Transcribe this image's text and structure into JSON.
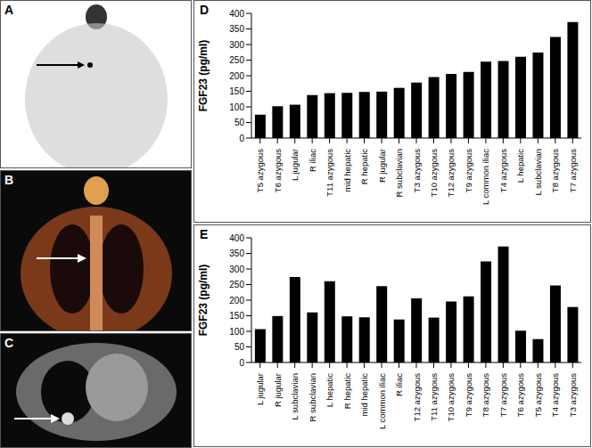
{
  "images": [
    {
      "label": "A"
    },
    {
      "label": "B"
    },
    {
      "label": "C"
    }
  ],
  "chart_data": [
    {
      "type": "bar",
      "title": "D",
      "y_label": "FGF23 (pg/ml)",
      "categories": [
        "T5 azygous",
        "T6 azygous",
        "L jugular",
        "R iliac",
        "T11 azygous",
        "mid hepatic",
        "R hepatic",
        "R jugular",
        "R subclavian",
        "T3 azygous",
        "T10 azygous",
        "T12 azygous",
        "T9 azygous",
        "L common iliac",
        "T4 azygous",
        "L hepatic",
        "L subclavian",
        "T8 azygous",
        "T7 azygous"
      ],
      "values": [
        75,
        102,
        107,
        138,
        144,
        145,
        148,
        149,
        161,
        178,
        196,
        206,
        212,
        245,
        247,
        261,
        274,
        324,
        372
      ],
      "color": "#000000",
      "ylim": [
        0,
        400
      ],
      "yticks": [
        0,
        50,
        100,
        150,
        200,
        250,
        300,
        350,
        400
      ],
      "grid": false
    },
    {
      "type": "bar",
      "title": "E",
      "y_label": "FGF23 (pg/ml)",
      "categories": [
        "L jugular",
        "R jugular",
        "L subclavian",
        "R subclavian",
        "L hepatic",
        "R hepatic",
        "mid hepatic",
        "L common iliac",
        "R iliac",
        "T12 azygous",
        "T11 azygous",
        "T10 azygous",
        "T9 azygous",
        "T8 azygous",
        "T7 azygous",
        "T6 azygous",
        "T5 azygous",
        "T4 azygous",
        "T3 azygous"
      ],
      "values": [
        107,
        149,
        274,
        161,
        261,
        148,
        145,
        245,
        138,
        206,
        144,
        196,
        212,
        324,
        372,
        102,
        75,
        247,
        178
      ],
      "color": "#000000",
      "ylim": [
        0,
        400
      ],
      "yticks": [
        0,
        50,
        100,
        150,
        200,
        250,
        300,
        350,
        400
      ],
      "grid": false
    }
  ]
}
